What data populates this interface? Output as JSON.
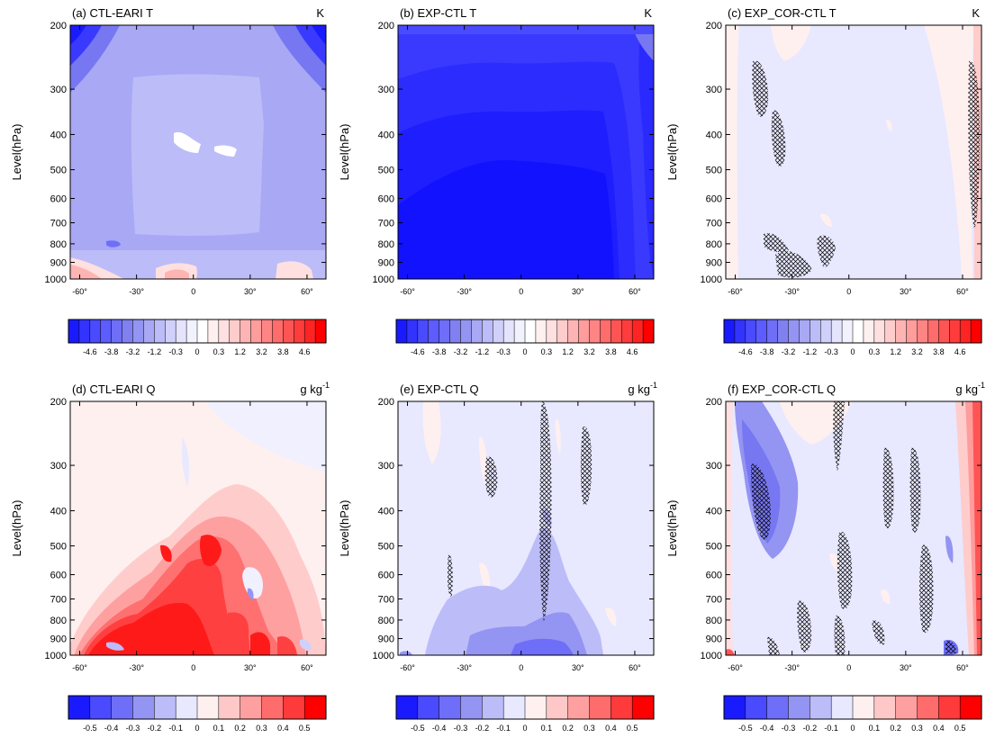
{
  "figure": {
    "ylabel": "Level(hPa)",
    "y_ticks": [
      "200",
      "300",
      "400",
      "500",
      "600",
      "700",
      "800",
      "900",
      "1000"
    ],
    "x_ticks": [
      "-60°",
      "-30°",
      "0",
      "30°",
      "60°"
    ]
  },
  "colorbars": {
    "T": {
      "labels": [
        "-4.6",
        "-3.8",
        "-3.2",
        "-1.2",
        "-0.3",
        "0",
        "0.3",
        "1.2",
        "3.2",
        "3.8",
        "4.6"
      ],
      "colors": [
        "#1a1aff",
        "#3333ff",
        "#4a4aff",
        "#5c5cff",
        "#6e6ef8",
        "#8080f0",
        "#9494f2",
        "#a8a8f5",
        "#bcbcf8",
        "#d0d0fb",
        "#e4e4fd",
        "#f2f2ff",
        "#ffffff",
        "#fff0f0",
        "#ffe0e0",
        "#ffcccc",
        "#ffb4b4",
        "#ff9c9c",
        "#ff8484",
        "#ff6c6c",
        "#ff5454",
        "#ff3c3c",
        "#ff2424",
        "#ff0000"
      ]
    },
    "Q": {
      "labels": [
        "-0.5",
        "-0.4",
        "-0.3",
        "-0.2",
        "-0.1",
        "0",
        "0.1",
        "0.2",
        "0.3",
        "0.4",
        "0.5"
      ],
      "colors": [
        "#1a1aff",
        "#4a4aff",
        "#6e6ef8",
        "#9494f2",
        "#bcbcf8",
        "#e8e8ff",
        "#fff0f0",
        "#ffc8c8",
        "#ffa0a0",
        "#ff6c6c",
        "#ff3a3a",
        "#ff0000"
      ]
    }
  },
  "panels": [
    {
      "label": "(a) CTL-EARI  T",
      "unit": "K",
      "unit_sup": "",
      "colorbar": "T"
    },
    {
      "label": "(b) EXP-CTL  T",
      "unit": "K",
      "unit_sup": "",
      "colorbar": "T"
    },
    {
      "label": "(c) EXP_COR-CTL  T",
      "unit": "K",
      "unit_sup": "",
      "colorbar": "T"
    },
    {
      "label": "(d) CTL-EARI  Q",
      "unit": "g kg",
      "unit_sup": "-1",
      "colorbar": "Q"
    },
    {
      "label": "(e) EXP-CTL  Q",
      "unit": "g kg",
      "unit_sup": "-1",
      "colorbar": "Q"
    },
    {
      "label": "(f) EXP_COR-CTL Q",
      "unit": "g kg",
      "unit_sup": "-1",
      "colorbar": "Q"
    }
  ],
  "chart_data": [
    {
      "type": "heatmap",
      "title": "(a) CTL-EARI  T",
      "ylabel": "Level(hPa)",
      "y_levels": [
        200,
        300,
        400,
        500,
        600,
        700,
        800,
        900,
        1000
      ],
      "x_range": [
        -65,
        70
      ],
      "x_ticks": [
        -60,
        -30,
        0,
        30,
        60
      ],
      "y_scale": "log",
      "units": "K",
      "background_value": -1.2,
      "colors": "#a8a8f5"
    },
    {
      "type": "heatmap",
      "title": "(b) EXP-CTL  T",
      "ylabel": "Level(hPa)",
      "y_levels": [
        200,
        300,
        400,
        500,
        600,
        700,
        800,
        900,
        1000
      ],
      "x_range": [
        -65,
        70
      ],
      "x_ticks": [
        -60,
        -30,
        0,
        30,
        60
      ],
      "y_scale": "log",
      "units": "K",
      "background_value": -3.8
    },
    {
      "type": "heatmap",
      "title": "(c) EXP_COR-CTL  T",
      "ylabel": "Level(hPa)",
      "y_levels": [
        200,
        300,
        400,
        500,
        600,
        700,
        800,
        900,
        1000
      ],
      "x_range": [
        -65,
        70
      ],
      "x_ticks": [
        -60,
        -30,
        0,
        30,
        60
      ],
      "y_scale": "log",
      "units": "K",
      "background_value": -0.3
    },
    {
      "type": "heatmap",
      "title": "(d) CTL-EARI  Q",
      "ylabel": "Level(hPa)",
      "y_levels": [
        200,
        300,
        400,
        500,
        600,
        700,
        800,
        900,
        1000
      ],
      "x_range": [
        -65,
        70
      ],
      "x_ticks": [
        -60,
        -30,
        0,
        30,
        60
      ],
      "y_scale": "log",
      "units": "g kg-1",
      "max_value": 0.5
    },
    {
      "type": "heatmap",
      "title": "(e) EXP-CTL  Q",
      "ylabel": "Level(hPa)",
      "y_levels": [
        200,
        300,
        400,
        500,
        600,
        700,
        800,
        900,
        1000
      ],
      "x_range": [
        -65,
        70
      ],
      "x_ticks": [
        -60,
        -30,
        0,
        30,
        60
      ],
      "y_scale": "log",
      "units": "g kg-1",
      "min_value": -0.3
    },
    {
      "type": "heatmap",
      "title": "(f) EXP_COR-CTL Q",
      "ylabel": "Level(hPa)",
      "y_levels": [
        200,
        300,
        400,
        500,
        600,
        700,
        800,
        900,
        1000
      ],
      "x_range": [
        -65,
        70
      ],
      "x_ticks": [
        -60,
        -30,
        0,
        30,
        60
      ],
      "y_scale": "log",
      "units": "g kg-1",
      "min_value": -0.2
    }
  ]
}
